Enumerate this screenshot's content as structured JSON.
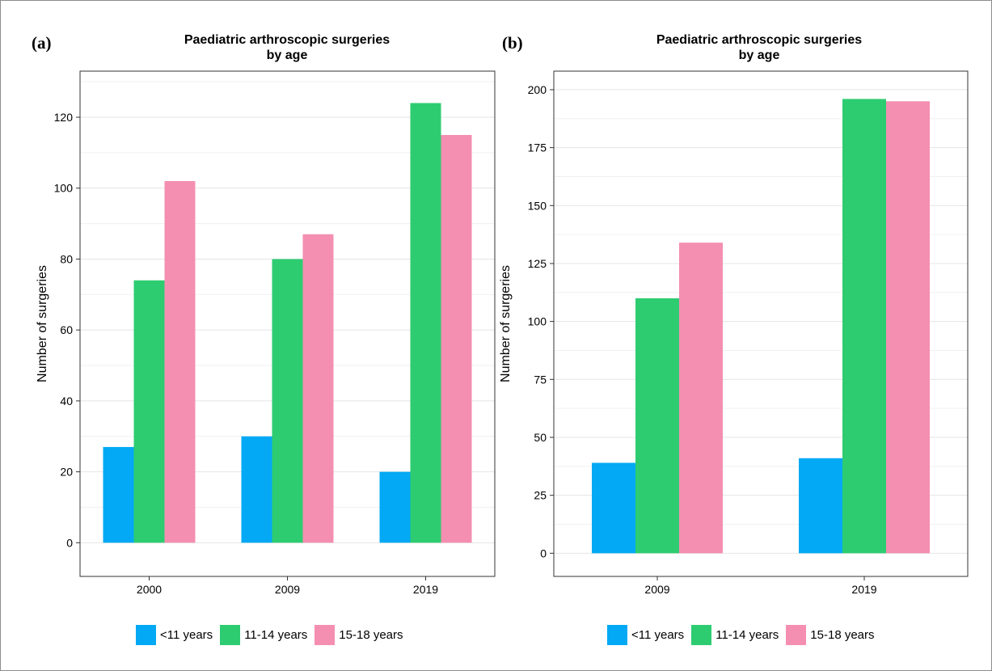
{
  "chart_data": [
    {
      "type": "bar",
      "panel_label": "(a)",
      "title": "Paediatric arthroscopic surgeries",
      "subtitle": "by age",
      "xlabel": "",
      "ylabel": "Number of surgeries",
      "categories": [
        "2000",
        "2009",
        "2019"
      ],
      "series": [
        {
          "name": "<11 years",
          "color": "#03a9f4",
          "values": [
            27,
            30,
            20
          ]
        },
        {
          "name": "11-14 years",
          "color": "#2ecc71",
          "values": [
            74,
            80,
            124
          ]
        },
        {
          "name": "15-18 years",
          "color": "#f48fb1",
          "values": [
            102,
            87,
            115
          ]
        }
      ],
      "ylim": [
        -9.5,
        133
      ],
      "yticks": [
        0,
        20,
        40,
        60,
        80,
        100,
        120
      ],
      "ytick_labels": [
        "0",
        "20",
        "40",
        "60",
        "80",
        "100",
        "120"
      ],
      "grid": true,
      "legend": "bottom"
    },
    {
      "type": "bar",
      "panel_label": "(b)",
      "title": "Paediatric arthroscopic surgeries",
      "subtitle": "by age",
      "xlabel": "",
      "ylabel": "Number of surgeries",
      "categories": [
        "2009",
        "2019"
      ],
      "series": [
        {
          "name": "<11 years",
          "color": "#03a9f4",
          "values": [
            39,
            41
          ]
        },
        {
          "name": "11-14 years",
          "color": "#2ecc71",
          "values": [
            110,
            196
          ]
        },
        {
          "name": "15-18 years",
          "color": "#f48fb1",
          "values": [
            134,
            195
          ]
        }
      ],
      "ylim": [
        -10,
        208
      ],
      "yticks": [
        0,
        25,
        50,
        75,
        100,
        125,
        150,
        175,
        200
      ],
      "ytick_labels": [
        "0",
        "25",
        "50",
        "75",
        "100",
        "125",
        "150",
        "175",
        "200"
      ],
      "grid": true,
      "legend": "bottom"
    }
  ]
}
